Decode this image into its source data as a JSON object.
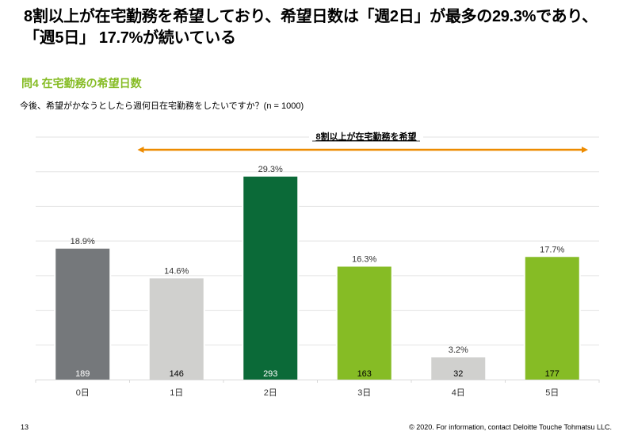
{
  "headline": {
    "line1": "8割以上が在宅勤務を希望しており、希望日数は「週2日」が最多の29.3%であり、",
    "line2": "「週5日」 17.7%が続いている"
  },
  "section_title": "問4 在宅勤務の希望日数",
  "question": "今後、希望がかなうとしたら週何日在宅勤務をしたいですか？(n = 1000)",
  "annotation": {
    "label": "8割以上が在宅勤務を希望",
    "arrow_color": "#ed8b00",
    "span_categories": [
      "1日",
      "5日"
    ]
  },
  "footer": {
    "page_number": "13",
    "copyright": "© 2020. For information, contact Deloitte Touche Tohmatsu LLC."
  },
  "chart_data": {
    "type": "bar",
    "title": "問4 在宅勤務の希望日数",
    "xlabel": "",
    "ylabel": "",
    "categories": [
      "0日",
      "1日",
      "2日",
      "3日",
      "4日",
      "5日"
    ],
    "values": [
      18.9,
      14.6,
      29.3,
      16.3,
      3.2,
      17.7
    ],
    "value_labels": [
      "18.9%",
      "14.6%",
      "29.3%",
      "16.3%",
      "3.2%",
      "17.7%"
    ],
    "counts": [
      189,
      146,
      293,
      163,
      32,
      177
    ],
    "colors": [
      "#75787b",
      "#d0d0ce",
      "#0b6a38",
      "#86bc25",
      "#d0d0ce",
      "#86bc25"
    ],
    "count_label_colors": [
      "#ffffff",
      "#000000",
      "#ffffff",
      "#000000",
      "#000000",
      "#000000"
    ],
    "ylim": [
      0,
      35
    ],
    "grid": true,
    "gridline_step": 5,
    "y_tick_labels_shown": false
  }
}
